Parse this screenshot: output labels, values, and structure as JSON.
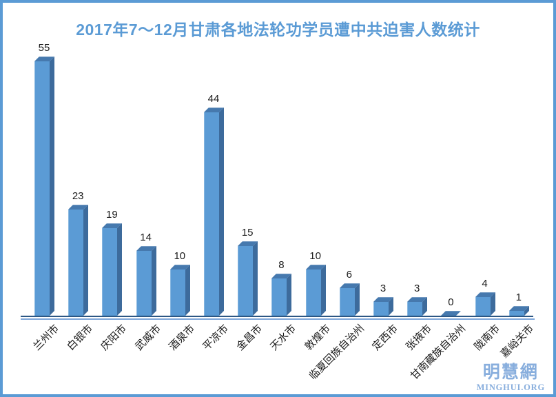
{
  "colors": {
    "frame": "#5b9bd5",
    "title": "#5b9bd5",
    "bar_front": "#5b9bd5",
    "bar_side": "#3d6b9c",
    "bar_top": "#4679ae",
    "axis_dark": "#2c5784",
    "axis_light": "#7ea6d9",
    "text": "#1a1a1a",
    "watermark": "#88aedd"
  },
  "chart_data": {
    "type": "bar",
    "title": "2017年7～12月甘肃各地法轮功学员遭中共迫害人数统计",
    "categories": [
      "兰州市",
      "白银市",
      "庆阳市",
      "武威市",
      "酒泉市",
      "平凉市",
      "金昌市",
      "天水市",
      "敦煌市",
      "临夏回族自治州",
      "定西市",
      "张掖市",
      "甘南藏族自治州",
      "陇南市",
      "嘉峪关市"
    ],
    "values": [
      55,
      23,
      19,
      14,
      10,
      44,
      15,
      8,
      10,
      6,
      3,
      3,
      0,
      4,
      1
    ],
    "xlabel": "",
    "ylabel": "",
    "ylim": [
      0,
      55
    ],
    "grid": false,
    "legend": "none",
    "value_labels_shown": true,
    "bar_style": "3d-column",
    "category_label_rotation_deg": -45
  },
  "watermark": {
    "cjk": "明慧網",
    "latin": "MINGHUI.ORG"
  }
}
